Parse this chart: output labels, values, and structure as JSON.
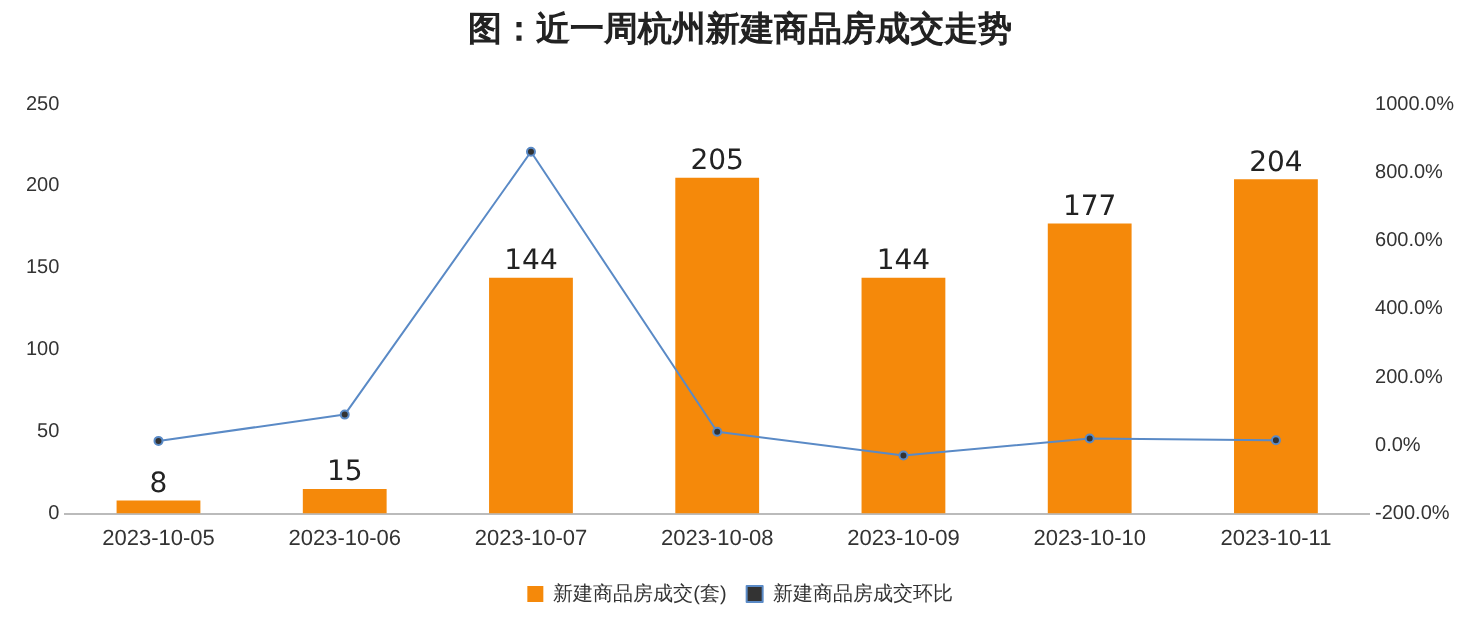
{
  "chart_data": {
    "type": "bar",
    "title": "图：近一周杭州新建商品房成交走势",
    "categories": [
      "2023-10-05",
      "2023-10-06",
      "2023-10-07",
      "2023-10-08",
      "2023-10-09",
      "2023-10-10",
      "2023-10-11"
    ],
    "series": [
      {
        "name": "新建商品房成交(套)",
        "color": "#f5890a",
        "values": [
          8,
          15,
          144,
          205,
          144,
          177,
          204
        ],
        "value_labels": [
          "8",
          "15",
          "144",
          "205",
          "144",
          "177",
          "204"
        ]
      },
      {
        "name": "新建商品房成交环比",
        "type": "line",
        "axis": "y2",
        "color": "#5a8ac6",
        "marker": "circle",
        "values": [
          13,
          90,
          860,
          40,
          -30,
          20,
          15
        ]
      }
    ],
    "ylim": [
      0,
      250
    ],
    "yticks": [
      0,
      50,
      100,
      150,
      200,
      250
    ],
    "y2lim": [
      -200,
      1000
    ],
    "y2ticks": [
      {
        "value": -200,
        "label": "-200.0%"
      },
      {
        "value": 0,
        "label": "0.0%"
      },
      {
        "value": 200,
        "label": "200.0%"
      },
      {
        "value": 400,
        "label": "400.0%"
      },
      {
        "value": 600,
        "label": "600.0%"
      },
      {
        "value": 800,
        "label": "800.0%"
      },
      {
        "value": 1000,
        "label": "1000.0%"
      }
    ],
    "legend": "bottom"
  }
}
